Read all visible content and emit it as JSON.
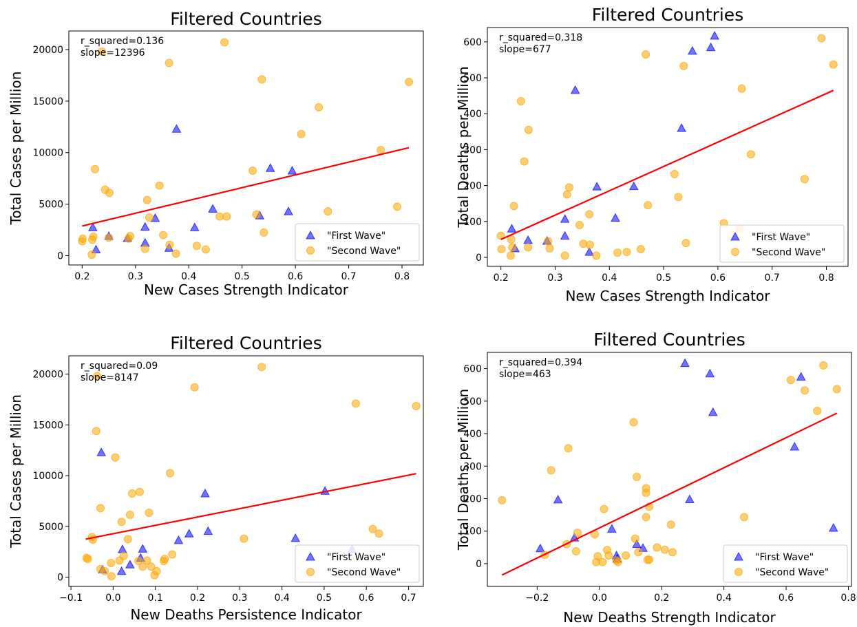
{
  "colors": {
    "first_wave": "#0000ff",
    "second_wave": "#ffa500",
    "fit_line": "#ff0000",
    "axes": "#000000"
  },
  "chart_data": [
    {
      "type": "scatter",
      "title": "Filtered Countries",
      "xlabel": "New Cases Strength Indicator",
      "ylabel": "Total Cases per Million",
      "xlim": [
        0.175,
        0.84
      ],
      "ylim": [
        -900,
        21800
      ],
      "xticks": [
        "0.2",
        "0.3",
        "0.4",
        "0.5",
        "0.6",
        "0.7",
        "0.8"
      ],
      "yticks": [
        "0",
        "5000",
        "10000",
        "15000",
        "20000"
      ],
      "r_squared_text": "r_squared=0.136",
      "slope_text": "slope=12396",
      "legend_position": "lower right",
      "fit_line": {
        "x": [
          0.2,
          0.813
        ],
        "y": [
          2880,
          10480
        ]
      },
      "series": [
        {
          "name": "\"First Wave\"",
          "marker": "triangle",
          "x": [
            0.22,
            0.226,
            0.25,
            0.285,
            0.318,
            0.318,
            0.337,
            0.363,
            0.377,
            0.411,
            0.445,
            0.533,
            0.553,
            0.587,
            0.594
          ],
          "y": [
            2750,
            600,
            1900,
            1700,
            1250,
            2800,
            3650,
            750,
            12300,
            2750,
            4550,
            3900,
            8500,
            4300,
            8250
          ]
        },
        {
          "name": "\"Second Wave\"",
          "marker": "circle",
          "x": [
            0.2,
            0.201,
            0.218,
            0.219,
            0.221,
            0.224,
            0.237,
            0.243,
            0.25,
            0.251,
            0.287,
            0.29,
            0.318,
            0.322,
            0.326,
            0.345,
            0.352,
            0.363,
            0.364,
            0.376,
            0.415,
            0.432,
            0.458,
            0.467,
            0.471,
            0.52,
            0.527,
            0.537,
            0.541,
            0.644,
            0.611,
            0.661,
            0.64,
            0.76,
            0.791,
            0.813
          ],
          "y": [
            1400,
            1650,
            100,
            1550,
            1850,
            8400,
            19800,
            6400,
            1750,
            6100,
            1650,
            1900,
            650,
            5400,
            3700,
            6800,
            2000,
            18700,
            1050,
            200,
            950,
            600,
            3800,
            20700,
            3800,
            8250,
            4000,
            17100,
            2250,
            14400,
            11800,
            4300,
            2200,
            10250,
            4750,
            16850
          ]
        }
      ]
    },
    {
      "type": "scatter",
      "title": "Filtered Countries",
      "xlabel": "New Cases Strength Indicator",
      "ylabel": "Total Deaths per Million",
      "xlim": [
        0.175,
        0.84
      ],
      "ylim": [
        -25,
        640
      ],
      "xticks": [
        "0.2",
        "0.3",
        "0.4",
        "0.5",
        "0.6",
        "0.7",
        "0.8"
      ],
      "yticks": [
        "0",
        "100",
        "200",
        "300",
        "400",
        "500",
        "600"
      ],
      "r_squared_text": "r_squared=0.318",
      "slope_text": "slope=677",
      "legend_position": "lower right",
      "fit_line": {
        "x": [
          0.2,
          0.813
        ],
        "y": [
          50,
          465
        ]
      },
      "series": [
        {
          "name": "\"First Wave\"",
          "marker": "triangle",
          "x": [
            0.22,
            0.226,
            0.25,
            0.285,
            0.318,
            0.318,
            0.337,
            0.363,
            0.377,
            0.411,
            0.445,
            0.533,
            0.553,
            0.587,
            0.594
          ],
          "y": [
            80,
            25,
            48,
            46,
            60,
            107,
            466,
            15,
            197,
            110,
            198,
            360,
            575,
            585,
            617
          ]
        },
        {
          "name": "\"Second Wave\"",
          "marker": "circle",
          "x": [
            0.2,
            0.201,
            0.218,
            0.219,
            0.221,
            0.224,
            0.237,
            0.243,
            0.25,
            0.251,
            0.287,
            0.29,
            0.318,
            0.322,
            0.326,
            0.345,
            0.352,
            0.363,
            0.364,
            0.376,
            0.415,
            0.432,
            0.458,
            0.467,
            0.471,
            0.52,
            0.527,
            0.537,
            0.541,
            0.644,
            0.611,
            0.661,
            0.64,
            0.76,
            0.791,
            0.813
          ],
          "y": [
            60,
            23,
            5,
            50,
            28,
            143,
            435,
            267,
            28,
            355,
            45,
            25,
            5,
            175,
            195,
            90,
            38,
            120,
            35,
            5,
            13,
            15,
            23,
            565,
            145,
            232,
            168,
            533,
            40,
            470,
            95,
            287,
            80,
            218,
            610,
            537
          ]
        }
      ]
    },
    {
      "type": "scatter",
      "title": "Filtered Countries",
      "xlabel": "New Deaths Persistence Indicator",
      "ylabel": "Total Cases per Million",
      "xlim": [
        -0.105,
        0.735
      ],
      "ylim": [
        -900,
        21800
      ],
      "xticks": [
        "−0.1",
        "0.0",
        "0.1",
        "0.2",
        "0.3",
        "0.4",
        "0.5",
        "0.6",
        "0.7"
      ],
      "yticks": [
        "0",
        "5000",
        "10000",
        "15000",
        "20000"
      ],
      "r_squared_text": "r_squared=0.09",
      "slope_text": "slope=8147",
      "legend_position": "lower right",
      "fit_line": {
        "x": [
          -0.065,
          0.718
        ],
        "y": [
          3750,
          10200
        ]
      },
      "series": [
        {
          "name": "\"First Wave\"",
          "marker": "triangle",
          "x": [
            -0.028,
            -0.025,
            0.02,
            0.022,
            0.04,
            0.065,
            0.07,
            0.155,
            0.18,
            0.218,
            0.225,
            0.432,
            0.502,
            0.566
          ],
          "y": [
            12300,
            750,
            600,
            2750,
            1250,
            1900,
            2800,
            3650,
            4300,
            8250,
            4550,
            3850,
            8500,
            2750
          ]
        },
        {
          "name": "\"Second Wave\"",
          "marker": "circle",
          "x": [
            -0.063,
            -0.06,
            -0.05,
            -0.048,
            -0.04,
            -0.038,
            -0.03,
            -0.03,
            -0.02,
            -0.005,
            -0.004,
            0.005,
            0.015,
            0.02,
            0.025,
            0.035,
            0.04,
            0.045,
            0.06,
            0.063,
            0.07,
            0.08,
            0.085,
            0.09,
            0.098,
            0.103,
            0.12,
            0.122,
            0.135,
            0.14,
            0.193,
            0.31,
            0.352,
            0.575,
            0.615,
            0.63,
            0.718
          ],
          "y": [
            1900,
            1800,
            3950,
            3700,
            14400,
            19800,
            6800,
            800,
            600,
            1400,
            100,
            11800,
            1650,
            5450,
            2100,
            3750,
            6150,
            8250,
            1600,
            8400,
            1050,
            1650,
            6350,
            1050,
            200,
            600,
            1600,
            1800,
            10250,
            2250,
            18700,
            3800,
            20700,
            17100,
            4750,
            4300,
            16850
          ]
        }
      ]
    },
    {
      "type": "scatter",
      "title": "Filtered Countries",
      "xlabel": "New Deaths Strength Indicator",
      "ylabel": "Total Deaths per Million",
      "xlim": [
        -0.36,
        0.81
      ],
      "ylim": [
        -70,
        650
      ],
      "xticks": [
        "−0.2",
        "0.0",
        "0.2",
        "0.4",
        "0.6",
        "0.8"
      ],
      "yticks": [
        "0",
        "100",
        "200",
        "300",
        "400",
        "500",
        "600"
      ],
      "r_squared_text": "r_squared=0.394",
      "slope_text": "slope=463",
      "legend_position": "lower right",
      "fit_line": {
        "x": [
          -0.313,
          0.763
        ],
        "y": [
          -35,
          463
        ]
      },
      "series": [
        {
          "name": "\"First Wave\"",
          "marker": "triangle",
          "x": [
            -0.19,
            -0.133,
            -0.08,
            0.04,
            0.055,
            0.057,
            0.12,
            0.14,
            0.275,
            0.355,
            0.365,
            0.29,
            0.627,
            0.648,
            0.752
          ],
          "y": [
            47,
            197,
            80,
            107,
            25,
            15,
            60,
            48,
            617,
            585,
            466,
            198,
            360,
            575,
            110
          ]
        },
        {
          "name": "\"Second Wave\"",
          "marker": "circle",
          "x": [
            -0.313,
            -0.175,
            -0.155,
            -0.105,
            -0.1,
            -0.075,
            -0.07,
            -0.015,
            -0.01,
            -0.005,
            0.01,
            0.015,
            0.025,
            0.03,
            0.055,
            0.06,
            0.085,
            0.11,
            0.115,
            0.12,
            0.125,
            0.15,
            0.15,
            0.15,
            0.155,
            0.16,
            0.16,
            0.185,
            0.21,
            0.23,
            0.235,
            0.465,
            0.615,
            0.66,
            0.7,
            0.72,
            0.763
          ],
          "y": [
            195,
            27,
            287,
            60,
            355,
            38,
            95,
            90,
            5,
            23,
            5,
            168,
            42,
            25,
            10,
            5,
            25,
            435,
            77,
            267,
            35,
            232,
            218,
            143,
            12,
            175,
            12,
            50,
            43,
            120,
            35,
            143,
            565,
            533,
            470,
            610,
            537
          ]
        }
      ]
    }
  ]
}
